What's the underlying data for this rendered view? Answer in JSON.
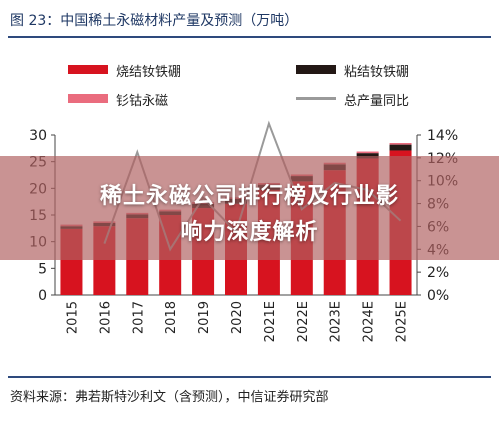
{
  "figure_title": "图 23：中国稀土永磁材料产量及预测（万吨）",
  "source_note": "资料来源：弗若斯特沙利文（含预测），中信证券研究部",
  "overlay": {
    "line1": "稀土永磁公司排行榜及行业影",
    "line2": "响力深度解析"
  },
  "colors": {
    "sintered_ndfeb": "#d7131f",
    "bonded_ndfeb": "#231815",
    "smco": "#ea6c7e",
    "total_growth": "#9a9a9a",
    "title_rule": "#2e4a7d"
  },
  "chart_data": {
    "type": "bar",
    "stacked": true,
    "categories": [
      "2015",
      "2016",
      "2017",
      "2018",
      "2019",
      "2020",
      "2021E",
      "2022E",
      "2023E",
      "2024E",
      "2025E"
    ],
    "series": [
      {
        "name": "烧结钕铁硼",
        "values": [
          12.4,
          12.9,
          14.4,
          15.0,
          16.3,
          17.1,
          19.7,
          21.3,
          23.4,
          25.6,
          27.1
        ]
      },
      {
        "name": "粘结钕铁硼",
        "values": [
          0.5,
          0.6,
          0.7,
          0.7,
          0.8,
          0.9,
          1.0,
          1.0,
          1.1,
          1.0,
          1.1
        ]
      },
      {
        "name": "钐钴永磁",
        "values": [
          0.3,
          0.3,
          0.3,
          0.3,
          0.3,
          0.3,
          0.3,
          0.3,
          0.3,
          0.3,
          0.3
        ]
      },
      {
        "name": "总产量同比",
        "axis": "right",
        "values": [
          null,
          4.5,
          12.5,
          4.0,
          8.5,
          5.5,
          15.0,
          7.5,
          9.8,
          9.2,
          6.5
        ]
      }
    ],
    "ylim": [
      0,
      30
    ],
    "yticks": [
      0,
      5,
      10,
      15,
      20,
      25,
      30
    ],
    "y2lim": [
      0,
      14
    ],
    "y2ticks": [
      "0%",
      "2%",
      "4%",
      "6%",
      "8%",
      "10%",
      "12%",
      "14%"
    ],
    "legend_position": "top",
    "grid": false
  }
}
